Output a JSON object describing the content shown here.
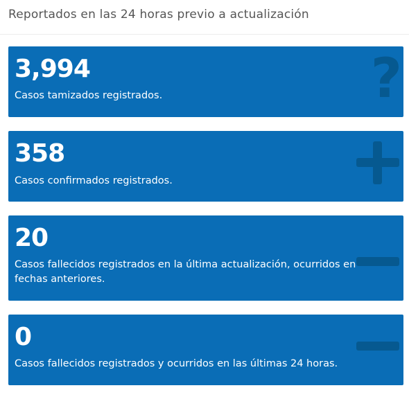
{
  "header": {
    "title": "Reportados en las 24 horas previo a actualización"
  },
  "cards": [
    {
      "value": "3,994",
      "label": "Casos tamizados registrados.",
      "icon": "question-icon"
    },
    {
      "value": "358",
      "label": "Casos confirmados registrados.",
      "icon": "plus-icon"
    },
    {
      "value": "20",
      "label": "Casos fallecidos registrados en la última actualización, ocurridos en fechas anteriores.",
      "icon": "minus-icon"
    },
    {
      "value": "0",
      "label": "Casos fallecidos registrados y ocurridos en las últimas 24 horas.",
      "icon": "minus-icon"
    }
  ],
  "colors": {
    "card_background": "#0a6db6",
    "icon": "#065990",
    "header_text": "#555555"
  }
}
